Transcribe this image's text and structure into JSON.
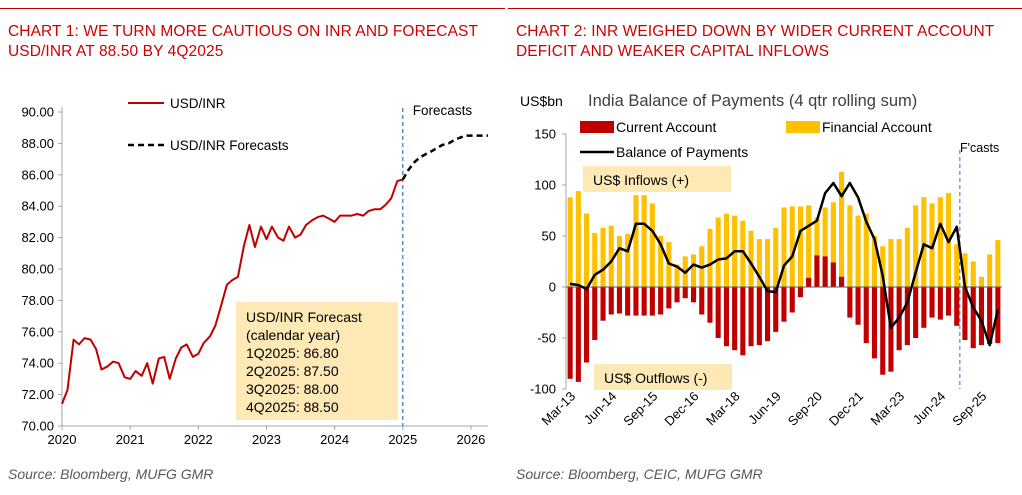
{
  "chart1": {
    "title": "CHART 1: WE TURN MORE CAUTIOUS ON INR AND FORECAST USD/INR AT 88.50 BY 4Q2025",
    "source": "Source: Bloomberg, MUFG GMR",
    "forecast_label": "Forecasts",
    "box_lines": [
      "USD/INR Forecast",
      "(calendar year)",
      "1Q2025: 86.80",
      "2Q2025: 87.50",
      "3Q2025: 88.00",
      "4Q2025: 88.50"
    ]
  },
  "chart2": {
    "title": "CHART 2: INR WEIGHED DOWN BY WIDER CURRENT ACCOUNT DEFICIT AND WEAKER CAPITAL INFLOWS",
    "source": "Source: Bloomberg, CEIC, MUFG GMR",
    "forecast_label": "F'casts",
    "inflows_label": "US$ Inflows (+)",
    "outflows_label": "US$ Outflows (-)"
  },
  "chart_data": [
    {
      "type": "line",
      "title": "",
      "xlabel": "",
      "ylabel": "",
      "x_ticks": [
        "2020",
        "2021",
        "2022",
        "2023",
        "2024",
        "2025",
        "2026"
      ],
      "y_ticks": [
        "70.00",
        "72.00",
        "74.00",
        "76.00",
        "78.00",
        "80.00",
        "82.00",
        "84.00",
        "86.00",
        "88.00",
        "90.00"
      ],
      "xlim": [
        2020,
        2026.25
      ],
      "ylim": [
        70,
        90
      ],
      "legend": "top-left",
      "series": [
        {
          "name": "USD/INR",
          "color": "#c00000",
          "style": "solid",
          "x": [
            2020.0,
            2020.08,
            2020.17,
            2020.25,
            2020.33,
            2020.42,
            2020.5,
            2020.58,
            2020.67,
            2020.75,
            2020.83,
            2020.92,
            2021.0,
            2021.08,
            2021.17,
            2021.25,
            2021.33,
            2021.42,
            2021.5,
            2021.58,
            2021.67,
            2021.75,
            2021.83,
            2021.92,
            2022.0,
            2022.08,
            2022.17,
            2022.25,
            2022.33,
            2022.42,
            2022.5,
            2022.58,
            2022.67,
            2022.75,
            2022.83,
            2022.92,
            2023.0,
            2023.08,
            2023.17,
            2023.25,
            2023.33,
            2023.42,
            2023.5,
            2023.58,
            2023.67,
            2023.75,
            2023.83,
            2023.92,
            2024.0,
            2024.08,
            2024.17,
            2024.25,
            2024.33,
            2024.42,
            2024.5,
            2024.58,
            2024.67,
            2024.75,
            2024.83,
            2024.92,
            2025.0
          ],
          "y": [
            71.4,
            72.3,
            75.5,
            75.2,
            75.6,
            75.5,
            74.9,
            73.6,
            73.8,
            74.1,
            74.0,
            73.1,
            73.0,
            73.5,
            73.2,
            74.0,
            72.7,
            74.3,
            74.4,
            73.0,
            74.3,
            75.0,
            75.2,
            74.4,
            74.6,
            75.3,
            75.7,
            76.4,
            77.6,
            79.0,
            79.3,
            79.5,
            81.5,
            82.8,
            81.4,
            82.7,
            81.9,
            82.7,
            82.0,
            81.8,
            82.7,
            82.0,
            82.2,
            82.8,
            83.1,
            83.3,
            83.4,
            83.2,
            83.0,
            83.4,
            83.4,
            83.4,
            83.5,
            83.4,
            83.7,
            83.8,
            83.8,
            84.1,
            84.5,
            85.6,
            85.7
          ]
        },
        {
          "name": "USD/INR Forecasts",
          "color": "#000000",
          "style": "dashed",
          "x": [
            2025.0,
            2025.08,
            2025.17,
            2025.25,
            2025.33,
            2025.42,
            2025.5,
            2025.58,
            2025.67,
            2025.75,
            2025.83,
            2025.92,
            2026.0,
            2026.08,
            2026.17,
            2026.25
          ],
          "y": [
            85.7,
            86.3,
            86.8,
            87.1,
            87.3,
            87.5,
            87.7,
            87.9,
            88.0,
            88.2,
            88.35,
            88.5,
            88.5,
            88.5,
            88.5,
            88.5
          ]
        }
      ],
      "forecast_start_x": 2025.0
    },
    {
      "type": "bar",
      "title": "India Balance of Payments (4 qtr rolling sum)",
      "ylabel": "US$bn",
      "xlabel": "",
      "ylim": [
        -100,
        150
      ],
      "y_ticks": [
        "-100",
        "-50",
        "0",
        "50",
        "100",
        "150"
      ],
      "x_tick_labels": [
        "Mar-13",
        "Jun-14",
        "Sep-15",
        "Dec-16",
        "Mar-18",
        "Jun-19",
        "Sep-20",
        "Dec-21",
        "Mar-23",
        "Jun-24",
        "Sep-25"
      ],
      "x_tick_positions": [
        0,
        5,
        10,
        15,
        20,
        25,
        30,
        35,
        40,
        45,
        50
      ],
      "legend": "top",
      "forecast_start_index": 48,
      "categories": [
        "Mar-13",
        "Jun-13",
        "Sep-13",
        "Dec-13",
        "Mar-14",
        "Jun-14",
        "Sep-14",
        "Dec-14",
        "Mar-15",
        "Jun-15",
        "Sep-15",
        "Dec-15",
        "Mar-16",
        "Jun-16",
        "Sep-16",
        "Dec-16",
        "Mar-17",
        "Jun-17",
        "Sep-17",
        "Dec-17",
        "Mar-18",
        "Jun-18",
        "Sep-18",
        "Dec-18",
        "Mar-19",
        "Jun-19",
        "Sep-19",
        "Dec-19",
        "Mar-20",
        "Jun-20",
        "Sep-20",
        "Dec-20",
        "Mar-21",
        "Jun-21",
        "Sep-21",
        "Dec-21",
        "Mar-22",
        "Jun-22",
        "Sep-22",
        "Dec-22",
        "Mar-23",
        "Jun-23",
        "Sep-23",
        "Dec-23",
        "Mar-24",
        "Jun-24",
        "Sep-24",
        "Dec-24",
        "Mar-25",
        "Jun-25",
        "Sep-25",
        "Dec-25",
        "Mar-26"
      ],
      "series": [
        {
          "name": "Current Account",
          "color": "#c00000",
          "values": [
            -90,
            -93,
            -74,
            -52,
            -33,
            -27,
            -26,
            -28,
            -28,
            -28,
            -28,
            -27,
            -21,
            -15,
            -11,
            -15,
            -27,
            -35,
            -50,
            -58,
            -62,
            -67,
            -58,
            -57,
            -53,
            -44,
            -34,
            -25,
            -10,
            9,
            31,
            30,
            24,
            10,
            -30,
            -37,
            -55,
            -70,
            -86,
            -83,
            -62,
            -57,
            -50,
            -40,
            -30,
            -32,
            -28,
            -38,
            -52,
            -60,
            -57,
            -56,
            -55
          ]
        },
        {
          "name": "Financial Account",
          "color": "#ffc000",
          "values": [
            88,
            94,
            72,
            53,
            58,
            60,
            50,
            52,
            90,
            90,
            82,
            50,
            44,
            22,
            30,
            32,
            40,
            57,
            68,
            72,
            70,
            65,
            55,
            47,
            47,
            58,
            78,
            79,
            79,
            80,
            68,
            78,
            83,
            113,
            80,
            70,
            72,
            50,
            40,
            47,
            47,
            58,
            80,
            88,
            82,
            88,
            92,
            42,
            33,
            25,
            10,
            32,
            46
          ]
        },
        {
          "name": "Balance of Payments",
          "color": "#000000",
          "type": "line",
          "values": [
            3,
            2,
            -2,
            12,
            17,
            25,
            38,
            35,
            62,
            62,
            55,
            42,
            23,
            20,
            14,
            22,
            19,
            22,
            27,
            28,
            35,
            35,
            23,
            10,
            -4,
            -5,
            21,
            30,
            55,
            60,
            65,
            92,
            102,
            89,
            102,
            88,
            64,
            47,
            11,
            -40,
            -30,
            -15,
            14,
            42,
            38,
            62,
            44,
            59,
            0,
            -20,
            -33,
            -57,
            -22
          ]
        }
      ]
    }
  ]
}
